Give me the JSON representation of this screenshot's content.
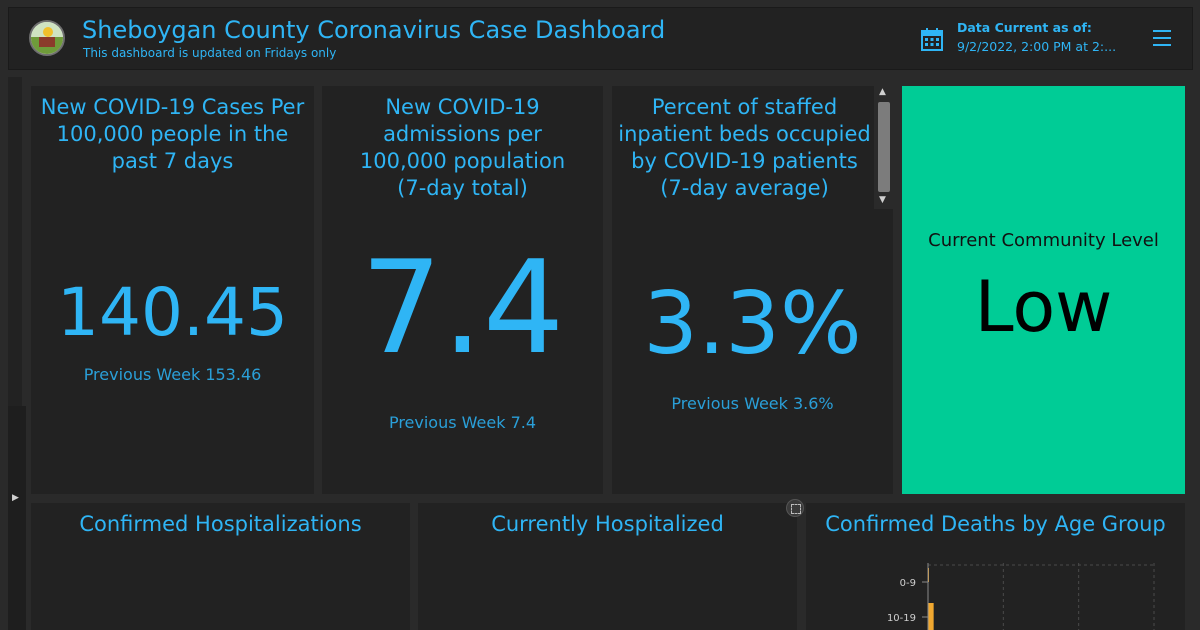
{
  "header": {
    "title": "Sheboygan County Coronavirus Case Dashboard",
    "subtitle": "This dashboard is updated on Fridays only",
    "data_current_label": "Data Current as of:",
    "data_current_value": "9/2/2022, 2:00 PM at 2:...",
    "icons": {
      "logo": "county-seal-logo",
      "calendar": "calendar-icon",
      "menu": "hamburger-menu-icon"
    }
  },
  "cards": [
    {
      "title": "New COVID-19 Cases Per 100,000 people in the past 7 days",
      "value": "140.45",
      "previous": "Previous Week 153.46"
    },
    {
      "title": "New COVID-19 admissions per 100,000 population (7-day total)",
      "value": "7.4",
      "previous": "Previous Week 7.4"
    },
    {
      "title": "Percent of staffed inpatient beds occupied by COVID-19 patients (7-day average)",
      "value": "3.3%",
      "previous": "Previous Week 3.6%"
    }
  ],
  "community_level": {
    "label": "Current Community Level",
    "value": "Low",
    "color": "#00cc96"
  },
  "bottom_panels": [
    {
      "title": "Confirmed Hospitalizations"
    },
    {
      "title": "Currently Hospitalized"
    },
    {
      "title": "Confirmed Deaths by Age Group"
    }
  ],
  "chart_data": {
    "type": "bar",
    "orientation": "horizontal",
    "categories": [
      "0-9",
      "10-19"
    ],
    "values": [
      0,
      1
    ],
    "title": "Confirmed Deaths by Age Group",
    "xlabel": "",
    "ylabel": "",
    "grid": true,
    "bar_color": "#f0a830"
  },
  "colors": {
    "accent": "#2fb5f5",
    "panel": "#222222",
    "background": "#2a2a2a"
  }
}
